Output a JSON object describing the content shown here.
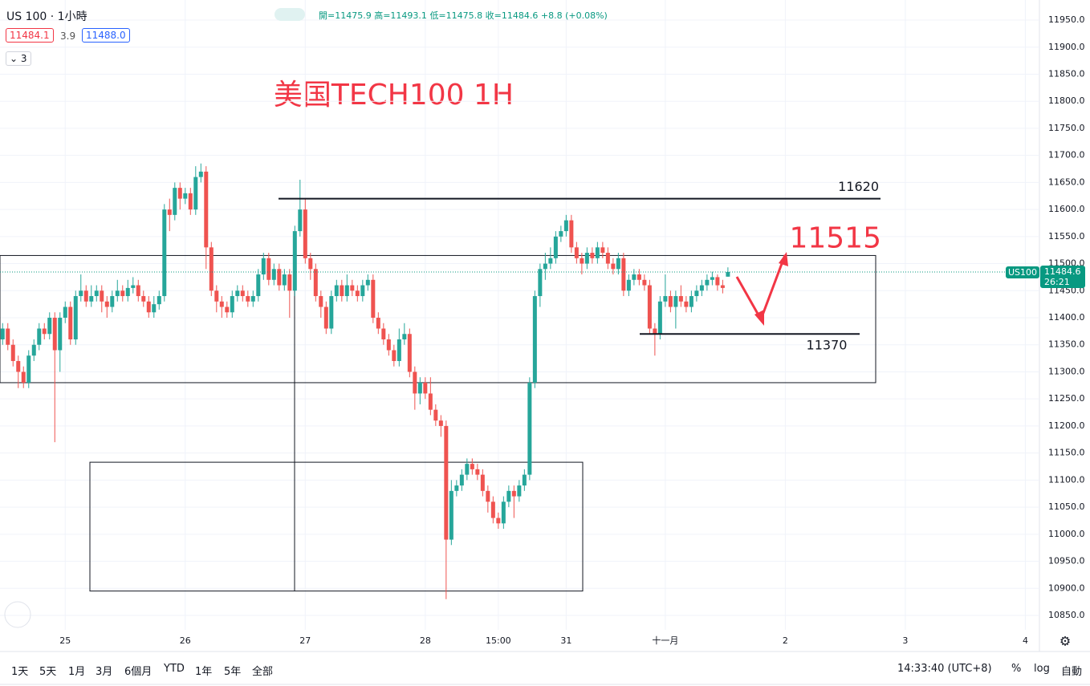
{
  "header": {
    "symbol": "US 100 · 1小時",
    "bid": "11484.1",
    "spread": "3.9",
    "ask": "11488.0",
    "indicators": "3",
    "ohlc": [
      "開=11475.9",
      "高=11493.1",
      "低=11475.8",
      "收=11484.6",
      "+8.8 (+0.08%)"
    ]
  },
  "toolbar": {
    "ranges": [
      "1天",
      "5天",
      "1月",
      "3月",
      "6個月",
      "YTD",
      "1年",
      "5年",
      "全部"
    ],
    "clock": "14:33:40 (UTC+8)",
    "percent": "%",
    "log": "log",
    "auto": "自動"
  },
  "price_tag": {
    "symbol": "US100",
    "price": "11484.6",
    "countdown": "26:21"
  },
  "chart_data": {
    "type": "candlestick",
    "title": "美国TECH100 1H",
    "up_color": "#26a69a",
    "down_color": "#ef5350",
    "grid": true,
    "xlim": [
      -0.5,
      198.7
    ],
    "ylim": [
      10823.3,
      11987.1
    ],
    "xticks": [
      {
        "value": 12,
        "label": "25"
      },
      {
        "value": 35,
        "label": "26"
      },
      {
        "value": 58,
        "label": "27"
      },
      {
        "value": 81,
        "label": "28"
      },
      {
        "value": 95,
        "label": "15:00"
      },
      {
        "value": 108,
        "label": "31"
      },
      {
        "value": 127,
        "label": "十一月"
      },
      {
        "value": 150,
        "label": "2"
      },
      {
        "value": 173,
        "label": "3"
      },
      {
        "value": 196,
        "label": "4"
      }
    ],
    "yticks": [
      {
        "value": 10850,
        "label": "10850.0"
      },
      {
        "value": 10900,
        "label": "10900.0"
      },
      {
        "value": 10950,
        "label": "10950.0"
      },
      {
        "value": 11000,
        "label": "11000.0"
      },
      {
        "value": 11050,
        "label": "11050.0"
      },
      {
        "value": 11100,
        "label": "11100.0"
      },
      {
        "value": 11150,
        "label": "11150.0"
      },
      {
        "value": 11200,
        "label": "11200.0"
      },
      {
        "value": 11250,
        "label": "11250.0"
      },
      {
        "value": 11300,
        "label": "11300.0"
      },
      {
        "value": 11350,
        "label": "11350.0"
      },
      {
        "value": 11400,
        "label": "11400.0"
      },
      {
        "value": 11450,
        "label": "11450.0"
      },
      {
        "value": 11500,
        "label": "11500.0"
      },
      {
        "value": 11550,
        "label": "11550.0"
      },
      {
        "value": 11600,
        "label": "11600.0"
      },
      {
        "value": 11650,
        "label": "11650.0"
      },
      {
        "value": 11700,
        "label": "11700.0"
      },
      {
        "value": 11750,
        "label": "11750.0"
      },
      {
        "value": 11800,
        "label": "11800.0"
      },
      {
        "value": 11850,
        "label": "11850.0"
      },
      {
        "value": 11900,
        "label": "11900.0"
      },
      {
        "value": 11950,
        "label": "11950.0"
      }
    ],
    "open": [
      11360,
      11380,
      11350,
      11320,
      11300,
      11280,
      11330,
      11350,
      11380,
      11370,
      11400,
      11340,
      11400,
      11420,
      11360,
      11440,
      11450,
      11430,
      11440,
      11450,
      11430,
      11420,
      11440,
      11450,
      11440,
      11455,
      11460,
      11440,
      11430,
      11410,
      11425,
      11440,
      11600,
      11590,
      11640,
      11620,
      11630,
      11600,
      11660,
      11670,
      11530,
      11450,
      11430,
      11420,
      11410,
      11440,
      11450,
      11440,
      11430,
      11440,
      11480,
      11510,
      11470,
      11490,
      11460,
      11480,
      11450,
      11560,
      11600,
      11510,
      11490,
      11440,
      11420,
      11380,
      11440,
      11460,
      11440,
      11460,
      11450,
      11440,
      11460,
      11470,
      11400,
      11380,
      11360,
      11340,
      11320,
      11360,
      11370,
      11300,
      11260,
      11280,
      11260,
      11230,
      11210,
      11200,
      10990,
      11080,
      11090,
      11110,
      11130,
      11120,
      11110,
      11080,
      11060,
      11030,
      11020,
      11060,
      11080,
      11070,
      11090,
      11110,
      11280,
      11440,
      11490,
      11500,
      11510,
      11550,
      11560,
      11580,
      11530,
      11510,
      11500,
      11520,
      11510,
      11530,
      11520,
      11500,
      11490,
      11510,
      11450,
      11470,
      11480,
      11470,
      11460,
      11380,
      11370,
      11430,
      11440,
      11420,
      11440,
      11430,
      11420,
      11440,
      11450,
      11460,
      11470,
      11475,
      11460,
      11475.9
    ],
    "high": [
      11390,
      11390,
      11360,
      11330,
      11310,
      11340,
      11360,
      11390,
      11390,
      11410,
      11410,
      11410,
      11430,
      11430,
      11450,
      11480,
      11460,
      11460,
      11460,
      11460,
      11440,
      11450,
      11470,
      11460,
      11470,
      11475,
      11470,
      11450,
      11440,
      11440,
      11450,
      11610,
      11620,
      11650,
      11650,
      11640,
      11640,
      11680,
      11685,
      11680,
      11540,
      11460,
      11440,
      11430,
      11450,
      11460,
      11460,
      11450,
      11450,
      11490,
      11520,
      11520,
      11500,
      11500,
      11490,
      11490,
      11570,
      11655,
      11620,
      11520,
      11500,
      11450,
      11430,
      11450,
      11470,
      11470,
      11480,
      11470,
      11460,
      11470,
      11480,
      11480,
      11410,
      11390,
      11370,
      11350,
      11380,
      11390,
      11380,
      11310,
      11290,
      11290,
      11290,
      11240,
      11220,
      11210,
      11100,
      11100,
      11120,
      11140,
      11140,
      11130,
      11120,
      11090,
      11070,
      11040,
      11070,
      11090,
      11090,
      11100,
      11120,
      11290,
      11450,
      11500,
      11520,
      11530,
      11560,
      11570,
      11590,
      11590,
      11540,
      11520,
      11530,
      11530,
      11540,
      11540,
      11530,
      11510,
      11520,
      11520,
      11480,
      11490,
      11490,
      11480,
      11470,
      11390,
      11440,
      11480,
      11450,
      11450,
      11460,
      11440,
      11450,
      11460,
      11470,
      11480,
      11485,
      11480,
      11470,
      11493.1
    ],
    "low": [
      11350,
      11340,
      11310,
      11270,
      11270,
      11270,
      11320,
      11340,
      11360,
      11360,
      11170,
      11300,
      11390,
      11350,
      11350,
      11430,
      11420,
      11420,
      11430,
      11410,
      11400,
      11410,
      11430,
      11430,
      11430,
      11445,
      11430,
      11420,
      11400,
      11400,
      11415,
      11430,
      11560,
      11580,
      11600,
      11610,
      11590,
      11590,
      11650,
      11490,
      11440,
      11410,
      11400,
      11400,
      11400,
      11430,
      11430,
      11420,
      11420,
      11430,
      11470,
      11460,
      11460,
      11450,
      11450,
      11400,
      11440,
      11550,
      11500,
      11470,
      11430,
      11400,
      11370,
      11370,
      11430,
      11430,
      11430,
      11440,
      11430,
      11430,
      11450,
      11390,
      11370,
      11350,
      11330,
      11310,
      11310,
      11350,
      11290,
      11230,
      11240,
      11250,
      11220,
      11200,
      11180,
      10880,
      10980,
      11070,
      11080,
      11100,
      11110,
      11100,
      11070,
      11040,
      11020,
      11010,
      11010,
      11050,
      11030,
      11060,
      11080,
      11100,
      11270,
      11420,
      11470,
      11490,
      11500,
      11540,
      11550,
      11520,
      11500,
      11480,
      11490,
      11500,
      11500,
      11510,
      11490,
      11480,
      11480,
      11440,
      11440,
      11460,
      11460,
      11450,
      11370,
      11330,
      11360,
      11420,
      11410,
      11380,
      11420,
      11410,
      11410,
      11430,
      11440,
      11450,
      11460,
      11450,
      11445,
      11475.8
    ],
    "close": [
      11380,
      11350,
      11320,
      11300,
      11280,
      11330,
      11350,
      11380,
      11370,
      11400,
      11340,
      11400,
      11420,
      11360,
      11440,
      11450,
      11430,
      11440,
      11450,
      11430,
      11420,
      11440,
      11450,
      11440,
      11455,
      11460,
      11440,
      11430,
      11410,
      11425,
      11440,
      11600,
      11590,
      11640,
      11620,
      11630,
      11600,
      11660,
      11670,
      11530,
      11450,
      11430,
      11420,
      11410,
      11440,
      11450,
      11440,
      11430,
      11440,
      11480,
      11510,
      11470,
      11490,
      11460,
      11480,
      11450,
      11560,
      11600,
      11510,
      11490,
      11440,
      11420,
      11380,
      11440,
      11460,
      11440,
      11460,
      11450,
      11440,
      11460,
      11470,
      11400,
      11380,
      11360,
      11340,
      11320,
      11360,
      11370,
      11300,
      11260,
      11280,
      11260,
      11230,
      11210,
      11200,
      10990,
      11080,
      11090,
      11110,
      11130,
      11120,
      11110,
      11080,
      11060,
      11030,
      11020,
      11060,
      11080,
      11070,
      11090,
      11110,
      11280,
      11440,
      11490,
      11500,
      11510,
      11550,
      11560,
      11580,
      11530,
      11510,
      11500,
      11520,
      11510,
      11530,
      11520,
      11500,
      11490,
      11510,
      11450,
      11470,
      11480,
      11470,
      11460,
      11380,
      11370,
      11430,
      11440,
      11420,
      11440,
      11430,
      11420,
      11440,
      11450,
      11460,
      11470,
      11475,
      11460,
      11455,
      11484.6
    ],
    "levels": [
      11620,
      11515,
      11370
    ],
    "zones": [
      {
        "top": 11515,
        "bottom": 11280
      },
      {
        "top": 11133,
        "bottom": 10895
      }
    ]
  }
}
